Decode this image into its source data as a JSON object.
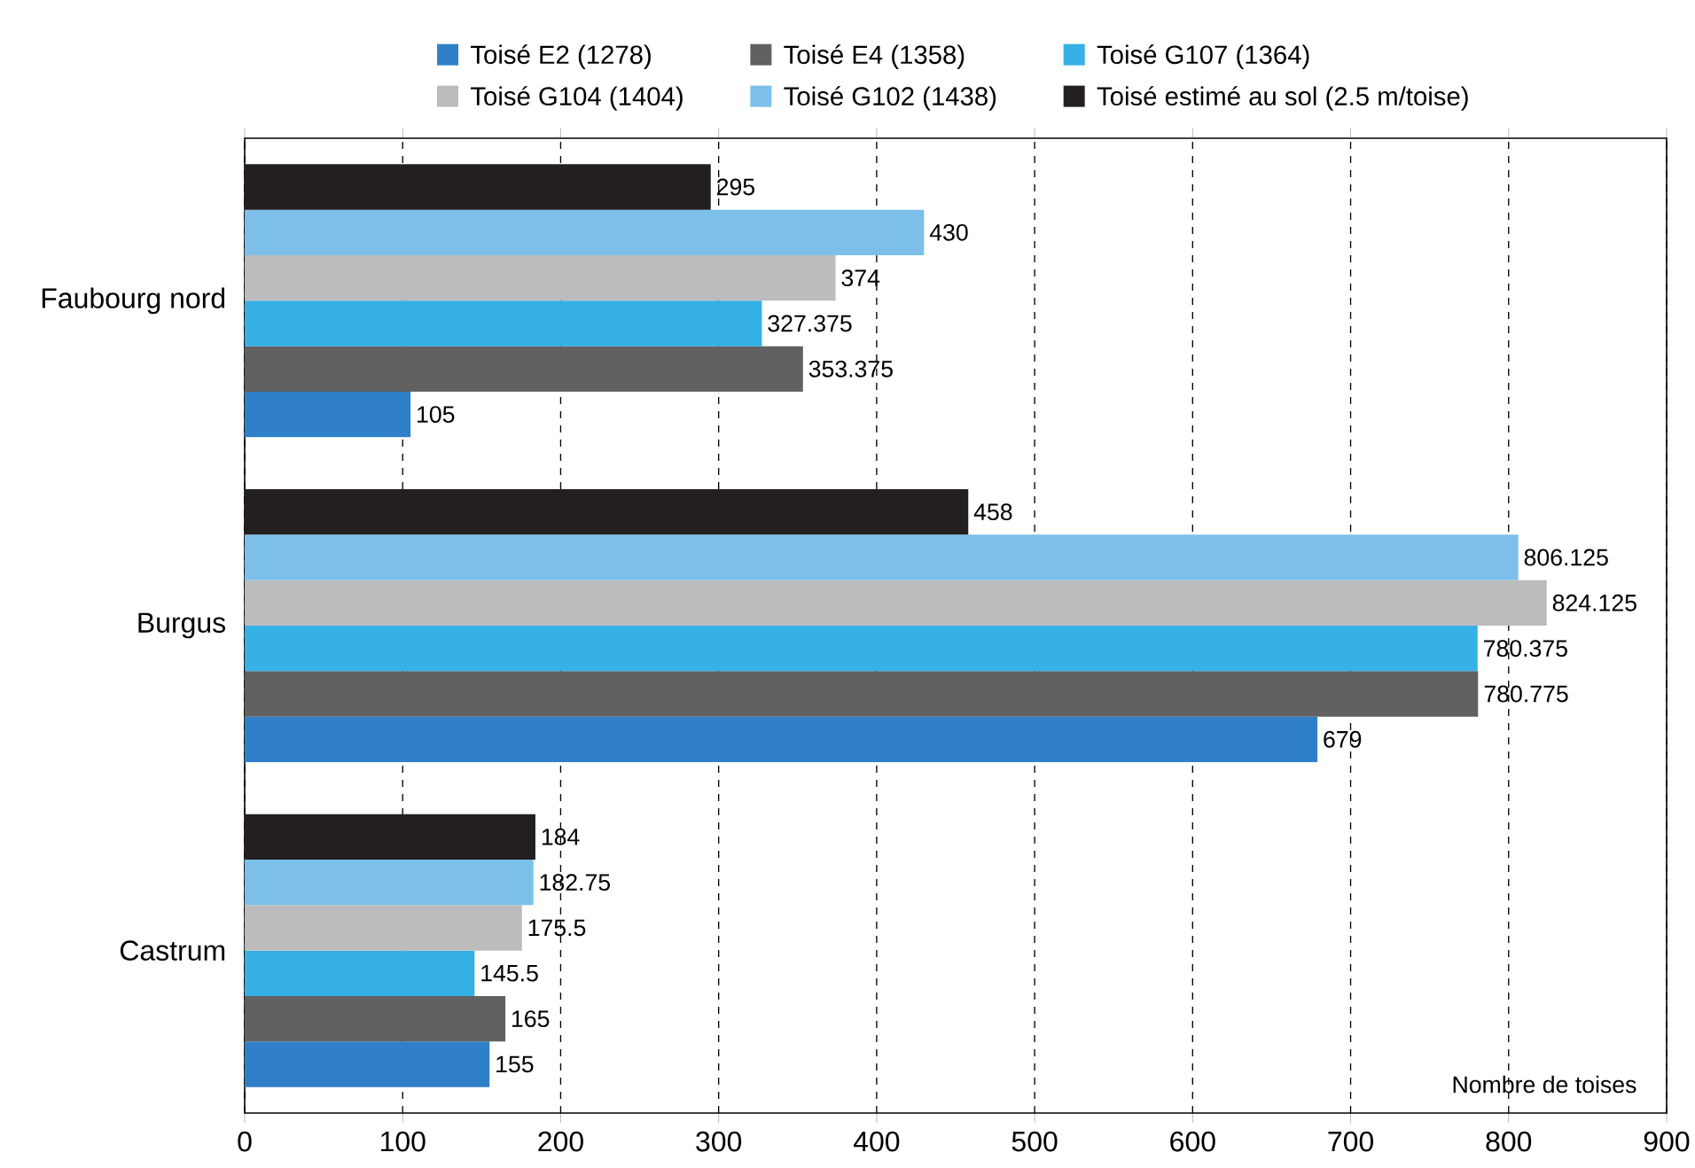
{
  "chart_data": {
    "type": "bar",
    "orientation": "horizontal",
    "xlabel": "Nombre de toises",
    "categories": [
      "Faubourg nord",
      "Burgus",
      "Castrum"
    ],
    "series": [
      {
        "name": "Toisé E2 (1278)",
        "color": "#2f80c8",
        "values": [
          105,
          679,
          155
        ]
      },
      {
        "name": "Toisé E4 (1358)",
        "color": "#616161",
        "values": [
          353.375,
          780.775,
          165
        ]
      },
      {
        "name": "Toisé G107 (1364)",
        "color": "#35b1e6",
        "values": [
          327.375,
          780.375,
          145.5
        ]
      },
      {
        "name": "Toisé G104 (1404)",
        "color": "#bcbcbe",
        "values": [
          374,
          824.125,
          175.5
        ]
      },
      {
        "name": "Toisé G102 (1438)",
        "color": "#7cc0ea",
        "values": [
          430,
          806.125,
          182.75
        ]
      },
      {
        "name": "Toisé estimé au sol (2.5 m/toise)",
        "color": "#231f20",
        "values": [
          295,
          458,
          184
        ]
      }
    ],
    "xlim": [
      0,
      900
    ],
    "xticks": [
      0,
      100,
      200,
      300,
      400,
      500,
      600,
      700,
      800,
      900
    ],
    "grid": "x",
    "legend": "top",
    "data_labels": true
  }
}
